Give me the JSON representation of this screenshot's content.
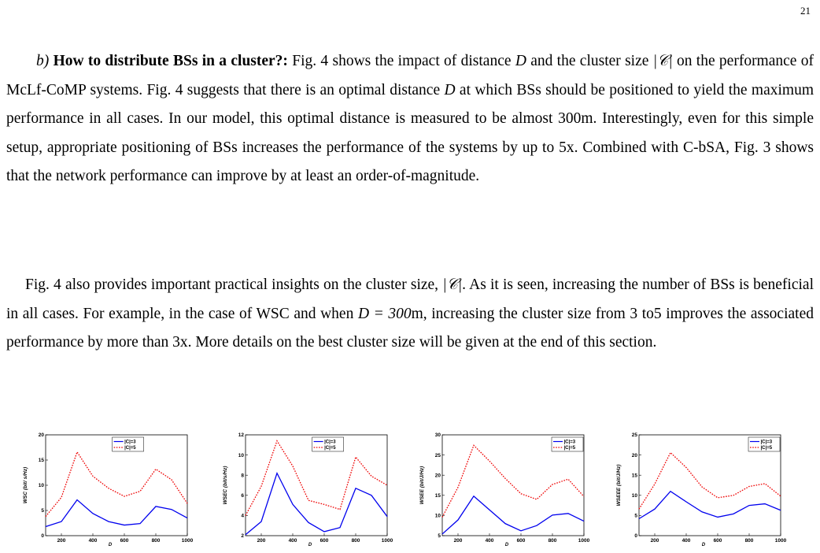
{
  "page_number": "21",
  "p1": {
    "heading_prefix": "b)",
    "heading": "How to distribute BSs in a cluster?:",
    "text_a": " Fig. 4 shows the impact of distance ",
    "var_d": "D",
    "text_b": " and the cluster size ",
    "var_c": "|𝒞|",
    "text_c": " on the performance of McLf-CoMP systems. Fig.  4 suggests that there is an optimal distance ",
    "var_d2": "D",
    "text_d": " at which BSs should be positioned to yield the maximum performance in all cases. In our model, this optimal distance is measured to be almost 300m. Interestingly, even for this simple setup, appropriate positioning of BSs increases the performance of the systems by up to 5x. Combined with C-bSA, Fig. 3 shows that the network performance can improve by at least an order-of-magnitude."
  },
  "p2": {
    "text_a": "Fig. 4 also provides important practical insights on the cluster size, ",
    "var_c": "|𝒞|",
    "text_b": ". As it is seen, increasing the number of BSs is beneficial in all cases. For example, in the case of WSC and when ",
    "var_eq": "D = 300",
    "text_c": "m, increasing the cluster size from 3 to5 improves the associated performance by more than 3x. More details on the best cluster size will be given at the end of this section."
  },
  "colors": {
    "c3": "#0000ee",
    "c5": "#ee0000"
  },
  "chart_data": [
    {
      "type": "line",
      "xlabel": "D",
      "ylabel": "WSC (bit/ s/Hz)",
      "x": [
        100,
        200,
        300,
        400,
        500,
        600,
        700,
        800,
        900,
        1000
      ],
      "xlim": [
        100,
        1000
      ],
      "ylim": [
        0,
        20
      ],
      "xticks": [
        200,
        400,
        600,
        800,
        1000
      ],
      "yticks": [
        0,
        5,
        10,
        15,
        20
      ],
      "legend_position": "top-center",
      "series": [
        {
          "name": "|C|=3",
          "values": [
            1.8,
            2.8,
            7.1,
            4.4,
            2.8,
            2.1,
            2.4,
            5.8,
            5.2,
            3.5
          ]
        },
        {
          "name": "|C|=5",
          "values": [
            3.8,
            7.6,
            16.6,
            11.8,
            9.4,
            7.8,
            8.8,
            13.2,
            11.1,
            6.4
          ]
        }
      ]
    },
    {
      "type": "line",
      "xlabel": "D",
      "ylabel": "WSEC (bit/s/Hz)",
      "x": [
        100,
        200,
        300,
        400,
        500,
        600,
        700,
        800,
        900,
        1000
      ],
      "xlim": [
        100,
        1000
      ],
      "ylim": [
        2,
        12
      ],
      "xticks": [
        200,
        400,
        600,
        800,
        1000
      ],
      "yticks": [
        2,
        4,
        6,
        8,
        10,
        12
      ],
      "legend_position": "top-center",
      "series": [
        {
          "name": "|C|=3",
          "values": [
            2.1,
            3.4,
            8.2,
            5.1,
            3.3,
            2.4,
            2.8,
            6.7,
            6.0,
            3.9
          ]
        },
        {
          "name": "|C|=5",
          "values": [
            4.0,
            6.9,
            11.4,
            8.9,
            5.5,
            5.1,
            4.6,
            9.8,
            7.9,
            7.0
          ]
        }
      ]
    },
    {
      "type": "line",
      "xlabel": "D",
      "ylabel": "WSEE (bit/J/Hz)",
      "x": [
        100,
        200,
        300,
        400,
        500,
        600,
        700,
        800,
        900,
        1000
      ],
      "xlim": [
        100,
        1000
      ],
      "ylim": [
        5,
        30
      ],
      "xticks": [
        200,
        400,
        600,
        800,
        1000
      ],
      "yticks": [
        5,
        10,
        15,
        20,
        25,
        30
      ],
      "legend_position": "top-right",
      "series": [
        {
          "name": "|C|=3",
          "values": [
            5.4,
            8.9,
            14.8,
            11.4,
            8.0,
            6.2,
            7.5,
            10.1,
            10.5,
            8.6
          ]
        },
        {
          "name": "|C|=5",
          "values": [
            9.6,
            17.0,
            27.4,
            23.5,
            19.2,
            15.4,
            14.0,
            17.7,
            19.0,
            14.7
          ]
        }
      ]
    },
    {
      "type": "line",
      "xlabel": "D",
      "ylabel": "WSEEE (bit/J/Hz)",
      "x": [
        100,
        200,
        300,
        400,
        500,
        600,
        700,
        800,
        900,
        1000
      ],
      "xlim": [
        100,
        1000
      ],
      "ylim": [
        0,
        25
      ],
      "xticks": [
        200,
        400,
        600,
        800,
        1000
      ],
      "yticks": [
        0,
        5,
        10,
        15,
        20,
        25
      ],
      "legend_position": "top-right",
      "series": [
        {
          "name": "|C|=3",
          "values": [
            4.2,
            6.6,
            11.0,
            8.4,
            5.9,
            4.6,
            5.4,
            7.5,
            7.9,
            6.3
          ]
        },
        {
          "name": "|C|=5",
          "values": [
            6.6,
            12.8,
            20.6,
            16.9,
            12.1,
            9.4,
            10.0,
            12.2,
            12.9,
            9.8
          ]
        }
      ]
    }
  ]
}
